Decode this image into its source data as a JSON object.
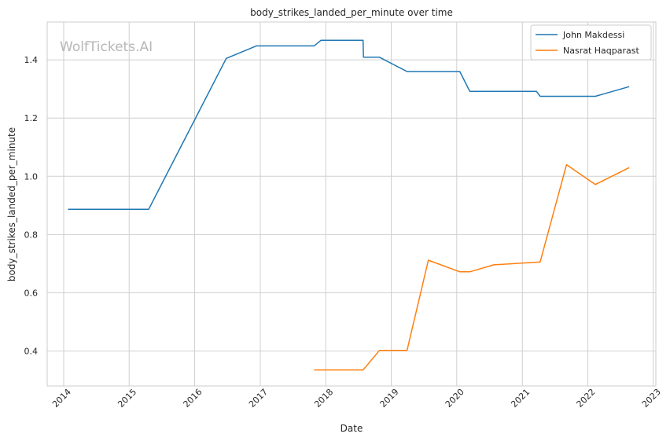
{
  "chart_data": {
    "type": "line",
    "title": "body_strikes_landed_per_minute over time",
    "xlabel": "Date",
    "ylabel": "body_strikes_landed_per_minute",
    "xlim": [
      "2013-10-01",
      "2023-01-15"
    ],
    "ylim": [
      0.28,
      1.53
    ],
    "x_ticks": [
      "2014",
      "2015",
      "2016",
      "2017",
      "2018",
      "2019",
      "2020",
      "2021",
      "2022",
      "2023"
    ],
    "y_ticks": [
      0.4,
      0.6,
      0.8,
      1.0,
      1.2,
      1.4
    ],
    "y_tick_labels": [
      "0.4",
      "0.6",
      "0.8",
      "1.0",
      "1.2",
      "1.4"
    ],
    "grid": true,
    "legend_position": "top-right",
    "watermark": "WolfTickets.AI",
    "series": [
      {
        "name": "John Makdessi",
        "color": "#1f77b4",
        "points": [
          {
            "x": "2014-01-25",
            "y": 0.887
          },
          {
            "x": "2015-04-20",
            "y": 0.887
          },
          {
            "x": "2016-06-25",
            "y": 1.405
          },
          {
            "x": "2016-12-10",
            "y": 1.448
          },
          {
            "x": "2017-10-28",
            "y": 1.448
          },
          {
            "x": "2017-12-05",
            "y": 1.467
          },
          {
            "x": "2018-07-28",
            "y": 1.467
          },
          {
            "x": "2018-07-30",
            "y": 1.409
          },
          {
            "x": "2018-10-27",
            "y": 1.409
          },
          {
            "x": "2019-03-30",
            "y": 1.36
          },
          {
            "x": "2020-01-18",
            "y": 1.36
          },
          {
            "x": "2020-03-14",
            "y": 1.292
          },
          {
            "x": "2021-03-20",
            "y": 1.292
          },
          {
            "x": "2021-04-10",
            "y": 1.275
          },
          {
            "x": "2022-02-12",
            "y": 1.275
          },
          {
            "x": "2022-08-20",
            "y": 1.308
          }
        ]
      },
      {
        "name": "Nasrat Haqparast",
        "color": "#ff7f0e",
        "points": [
          {
            "x": "2017-10-28",
            "y": 0.335
          },
          {
            "x": "2018-07-28",
            "y": 0.335
          },
          {
            "x": "2018-10-27",
            "y": 0.402
          },
          {
            "x": "2019-03-30",
            "y": 0.402
          },
          {
            "x": "2019-07-27",
            "y": 0.712
          },
          {
            "x": "2020-01-18",
            "y": 0.672
          },
          {
            "x": "2020-03-14",
            "y": 0.672
          },
          {
            "x": "2020-07-25",
            "y": 0.696
          },
          {
            "x": "2021-04-10",
            "y": 0.706
          },
          {
            "x": "2021-09-04",
            "y": 1.04
          },
          {
            "x": "2022-02-12",
            "y": 0.972
          },
          {
            "x": "2022-08-20",
            "y": 1.03
          }
        ]
      }
    ]
  }
}
